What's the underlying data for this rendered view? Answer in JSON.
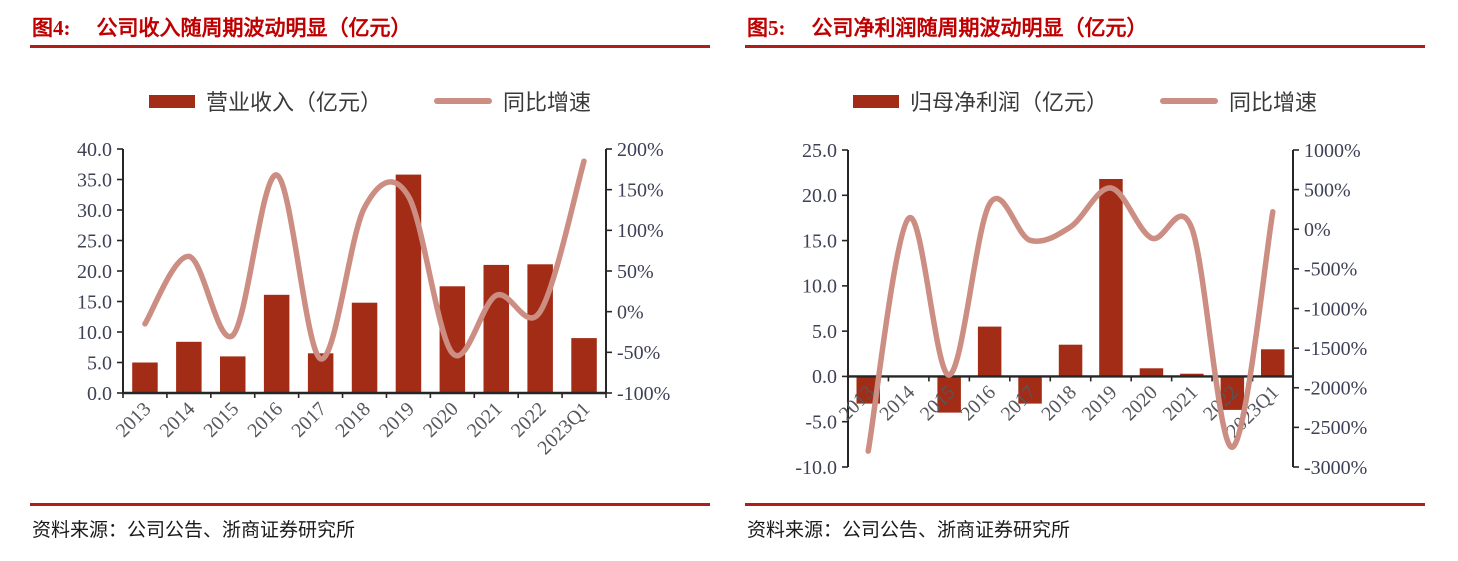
{
  "colors": {
    "bar": "#A22C16",
    "line": "#CC8D83",
    "title_red": "#C00000",
    "rule_red": "#B01E1A",
    "axis_line": "#262626",
    "y_tick_label": "#3E4156",
    "x_tick_label": "#56565E",
    "legend_text": "#3A3A3A",
    "source_text": "#1A1A1A"
  },
  "figures": [
    {
      "label": "图4:",
      "title": "公司收入随周期波动明显（亿元）",
      "source_label": "资料来源：",
      "source_text": "公司公告、浙商证券研究所"
    },
    {
      "label": "图5:",
      "title": "公司净利润随周期波动明显（亿元）",
      "source_label": "资料来源：",
      "source_text": "公司公告、浙商证券研究所"
    }
  ],
  "chart_data": [
    {
      "type": "combo_bar_line",
      "title": "图4: 公司收入随周期波动明显（亿元）",
      "categories": [
        "2013",
        "2014",
        "2015",
        "2016",
        "2017",
        "2018",
        "2019",
        "2020",
        "2021",
        "2022",
        "2023Q1"
      ],
      "series": [
        {
          "name": "营业收入（亿元）",
          "type": "bar",
          "axis": "left",
          "values": [
            5.0,
            8.4,
            6.0,
            16.1,
            6.5,
            14.8,
            35.8,
            17.5,
            21.0,
            21.1,
            9.0
          ]
        },
        {
          "name": "同比增速",
          "type": "line",
          "axis": "right",
          "unit": "%",
          "smoothed": true,
          "values": [
            -15,
            68,
            -29,
            168,
            -58,
            128,
            142,
            -51,
            20,
            0,
            185
          ]
        }
      ],
      "left_axis": {
        "min": 0,
        "max": 40,
        "tick_values": [
          0,
          5,
          10,
          15,
          20,
          25,
          30,
          35,
          40
        ],
        "tick_labels": [
          "0.0",
          "5.0",
          "10.0",
          "15.0",
          "20.0",
          "25.0",
          "30.0",
          "35.0",
          "40.0"
        ]
      },
      "right_axis": {
        "min": -100,
        "max": 200,
        "tick_values": [
          -100,
          -50,
          0,
          50,
          100,
          150,
          200
        ],
        "tick_labels": [
          "-100%",
          "-50%",
          "0%",
          "50%",
          "100%",
          "150%",
          "200%"
        ]
      },
      "grid": false,
      "legend_position": "top",
      "x_label_rotation": -45
    },
    {
      "type": "combo_bar_line",
      "title": "图5: 公司净利润随周期波动明显（亿元）",
      "categories": [
        "2013",
        "2014",
        "2015",
        "2016",
        "2017",
        "2018",
        "2019",
        "2020",
        "2021",
        "2022",
        "2023Q1"
      ],
      "series": [
        {
          "name": "归母净利润（亿元）",
          "type": "bar",
          "axis": "left",
          "values": [
            -3.0,
            0.1,
            -4.0,
            5.5,
            -3.0,
            3.5,
            21.8,
            0.9,
            0.3,
            -3.7,
            3.0
          ]
        },
        {
          "name": "同比增速",
          "type": "line",
          "axis": "right",
          "unit": "%",
          "smoothed": true,
          "values": [
            -2800,
            140,
            -1840,
            320,
            -140,
            30,
            520,
            -110,
            10,
            -2750,
            220
          ]
        }
      ],
      "left_axis": {
        "min": -10,
        "max": 25,
        "tick_values": [
          -10,
          -5,
          0,
          5,
          10,
          15,
          20,
          25
        ],
        "tick_labels": [
          "-10.0",
          "-5.0",
          "0.0",
          "5.0",
          "10.0",
          "15.0",
          "20.0",
          "25.0"
        ]
      },
      "right_axis": {
        "min": -3000,
        "max": 1000,
        "tick_values": [
          -3000,
          -2500,
          -2000,
          -1500,
          -1000,
          -500,
          0,
          500,
          1000
        ],
        "tick_labels": [
          "-3000%",
          "-2500%",
          "-2000%",
          "-1500%",
          "-1000%",
          "-500%",
          "0%",
          "500%",
          "1000%"
        ]
      },
      "grid": false,
      "legend_position": "top",
      "x_label_rotation": -45
    }
  ]
}
